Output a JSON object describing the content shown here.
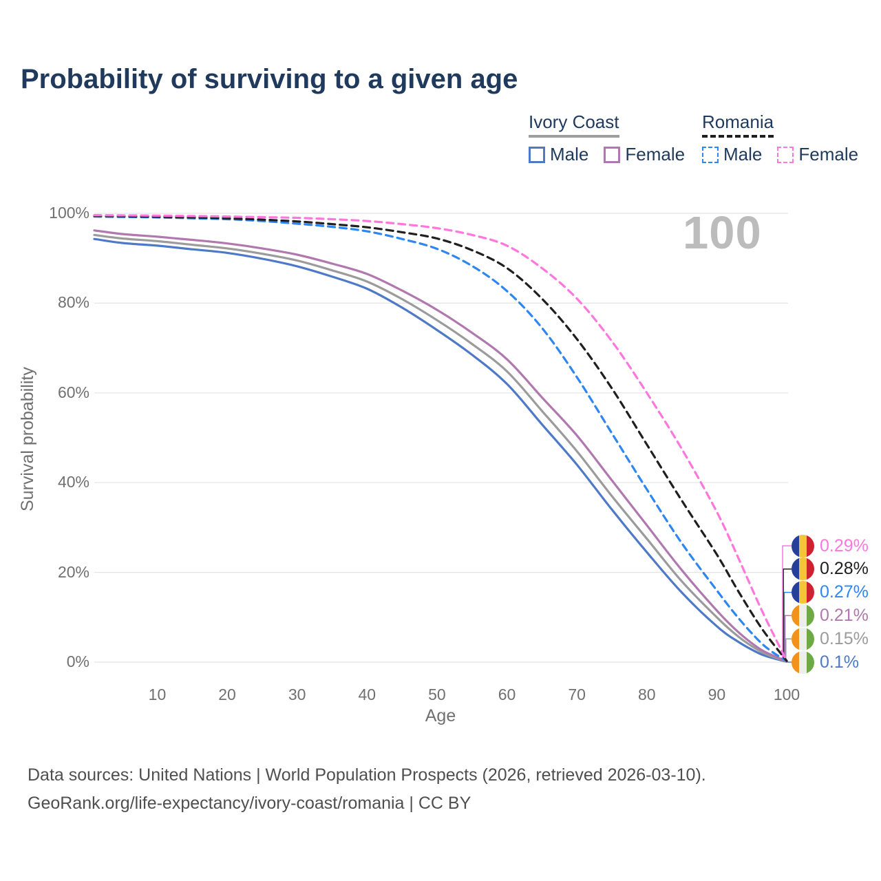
{
  "title": "Probability of surviving to a given age",
  "watermark": "100",
  "legend": {
    "groups": [
      {
        "title": "Ivory Coast",
        "underline": "solid",
        "items": [
          {
            "label": "Male",
            "color": "#4e79c7",
            "dashed": false
          },
          {
            "label": "Female",
            "color": "#b078ae",
            "dashed": false
          }
        ]
      },
      {
        "title": "Romania",
        "underline": "dashed",
        "items": [
          {
            "label": "Male",
            "color": "#2e86f0",
            "dashed": true
          },
          {
            "label": "Female",
            "color": "#ff77dd",
            "dashed": true
          }
        ]
      }
    ]
  },
  "chart_data": {
    "type": "line",
    "title": "Probability of surviving to a given age",
    "xlabel": "Age",
    "ylabel": "Survival probability",
    "xlim": [
      1,
      100
    ],
    "ylim": [
      0,
      100
    ],
    "grid": "horizontal",
    "legend_position": "top-right",
    "x_ticks": [
      10,
      20,
      30,
      40,
      50,
      60,
      70,
      80,
      90,
      100
    ],
    "y_ticks": [
      {
        "v": 0,
        "label": "0%"
      },
      {
        "v": 20,
        "label": "20%"
      },
      {
        "v": 40,
        "label": "40%"
      },
      {
        "v": 60,
        "label": "60%"
      },
      {
        "v": 80,
        "label": "80%"
      },
      {
        "v": 100,
        "label": "100%"
      }
    ],
    "x": [
      1,
      5,
      10,
      15,
      20,
      25,
      30,
      35,
      40,
      45,
      50,
      55,
      60,
      65,
      70,
      75,
      80,
      85,
      90,
      93,
      96,
      98,
      100
    ],
    "series": [
      {
        "name": "Ivory Coast Male",
        "color": "#4e79c7",
        "dash": "solid",
        "end_label": "0.1%",
        "flag": "ivory_coast",
        "values": [
          94.3,
          93.4,
          92.8,
          92.0,
          91.2,
          89.9,
          88.2,
          85.9,
          83.2,
          79.0,
          74.0,
          68.5,
          62.0,
          53.0,
          44.0,
          34.0,
          24.5,
          15.5,
          8.0,
          4.6,
          2.0,
          0.9,
          0.1
        ]
      },
      {
        "name": "Ivory Coast All",
        "color": "#9b9b9b",
        "dash": "solid",
        "end_label": "0.15%",
        "flag": "ivory_coast",
        "values": [
          95.2,
          94.4,
          93.8,
          93.0,
          92.2,
          91.0,
          89.5,
          87.3,
          84.8,
          80.9,
          76.2,
          70.9,
          64.8,
          56.0,
          47.0,
          37.0,
          27.5,
          18.0,
          10.0,
          5.8,
          2.6,
          1.2,
          0.15
        ]
      },
      {
        "name": "Ivory Coast Female",
        "color": "#b078ae",
        "dash": "solid",
        "end_label": "0.21%",
        "flag": "ivory_coast",
        "values": [
          96.2,
          95.4,
          94.8,
          94.1,
          93.3,
          92.2,
          90.8,
          88.8,
          86.5,
          82.8,
          78.5,
          73.4,
          67.5,
          59.0,
          50.5,
          40.5,
          30.5,
          20.5,
          11.5,
          6.8,
          3.1,
          1.5,
          0.21
        ]
      },
      {
        "name": "Romania Male",
        "color": "#2e86f0",
        "dash": "dashed",
        "end_label": "0.27%",
        "flag": "romania",
        "values": [
          99.3,
          99.2,
          99.1,
          98.9,
          98.7,
          98.3,
          97.7,
          97.0,
          96.0,
          94.3,
          92.1,
          88.3,
          82.7,
          74.5,
          63.5,
          51.0,
          38.5,
          26.5,
          16.0,
          10.0,
          4.8,
          2.2,
          0.27
        ]
      },
      {
        "name": "Romania All",
        "color": "#1f1f1f",
        "dash": "dashed",
        "end_label": "0.28%",
        "flag": "romania",
        "values": [
          99.45,
          99.35,
          99.25,
          99.1,
          98.9,
          98.6,
          98.2,
          97.6,
          96.9,
          95.8,
          94.4,
          91.8,
          87.8,
          81.0,
          72.0,
          61.0,
          48.5,
          36.0,
          24.0,
          16.0,
          8.5,
          4.2,
          0.28
        ]
      },
      {
        "name": "Romania Female",
        "color": "#ff77dd",
        "dash": "dashed",
        "end_label": "0.29%",
        "flag": "romania",
        "values": [
          99.6,
          99.55,
          99.5,
          99.4,
          99.3,
          99.15,
          99.0,
          98.7,
          98.3,
          97.6,
          96.7,
          95.2,
          92.8,
          87.8,
          81.0,
          71.5,
          60.0,
          47.5,
          33.5,
          23.5,
          13.0,
          6.5,
          0.29
        ]
      }
    ]
  },
  "flags": {
    "romania": [
      "#26409a",
      "#f2c737",
      "#cf2231"
    ],
    "ivory_coast": [
      "#f2921d",
      "#ededed",
      "#6caa45"
    ]
  },
  "footer": {
    "line1": "Data sources: United Nations | World Population Prospects (2026, retrieved 2026-03-10).",
    "line2": "GeoRank.org/life-expectancy/ivory-coast/romania | CC BY"
  }
}
